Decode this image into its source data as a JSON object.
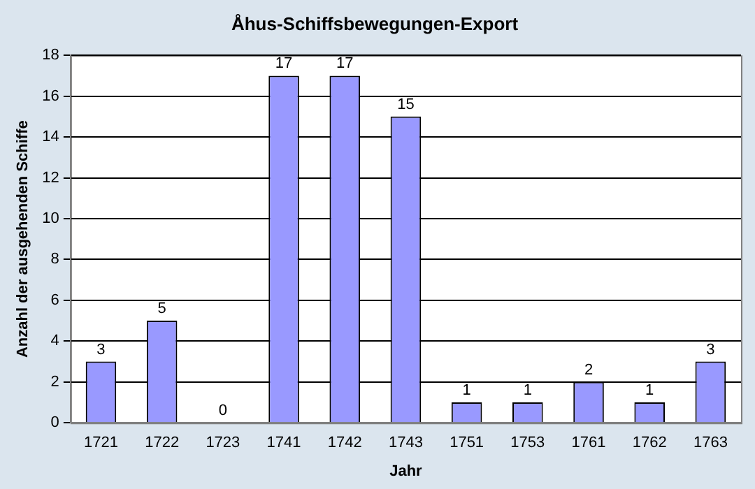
{
  "chart_data": {
    "type": "bar",
    "title": "Åhus-Schiffsbewegungen-Export",
    "xlabel": "Jahr",
    "ylabel": "Anzahl der ausgehenden Schiffe",
    "categories": [
      "1721",
      "1722",
      "1723",
      "1741",
      "1742",
      "1743",
      "1751",
      "1753",
      "1761",
      "1762",
      "1763"
    ],
    "values": [
      3,
      5,
      0,
      17,
      17,
      15,
      1,
      1,
      2,
      1,
      3
    ],
    "color": "#9999ff",
    "ylim": [
      0,
      18
    ],
    "yticks": [
      0,
      2,
      4,
      6,
      8,
      10,
      12,
      14,
      16,
      18
    ],
    "grid": "y",
    "data_labels": true,
    "legend": false
  }
}
